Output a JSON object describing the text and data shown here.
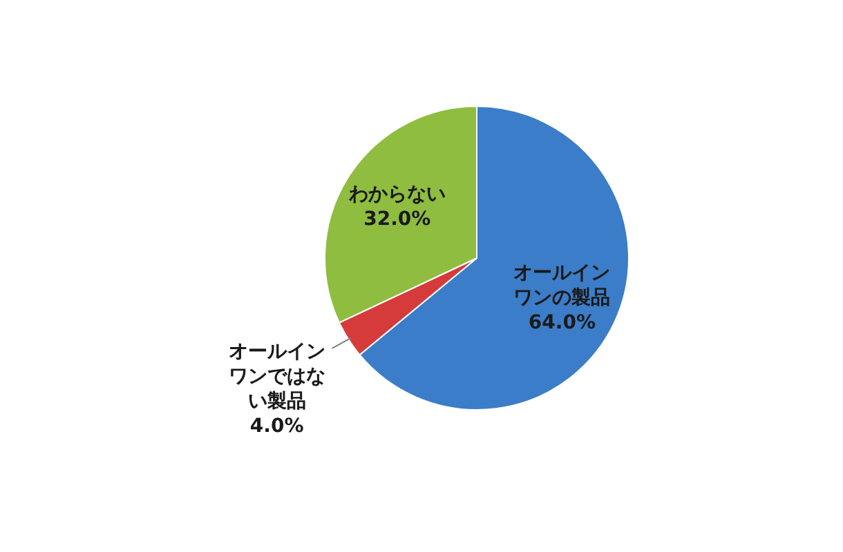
{
  "chart_data": {
    "type": "pie",
    "categories": [
      "オールインワンの製品",
      "オールインワンではない製品",
      "わからない"
    ],
    "values": [
      64.0,
      4.0,
      32.0
    ],
    "colors": [
      "#3b7dc8",
      "#d63b3b",
      "#8fbd3f"
    ],
    "value_labels": [
      "64.0%",
      "4.0%",
      "32.0%"
    ]
  }
}
